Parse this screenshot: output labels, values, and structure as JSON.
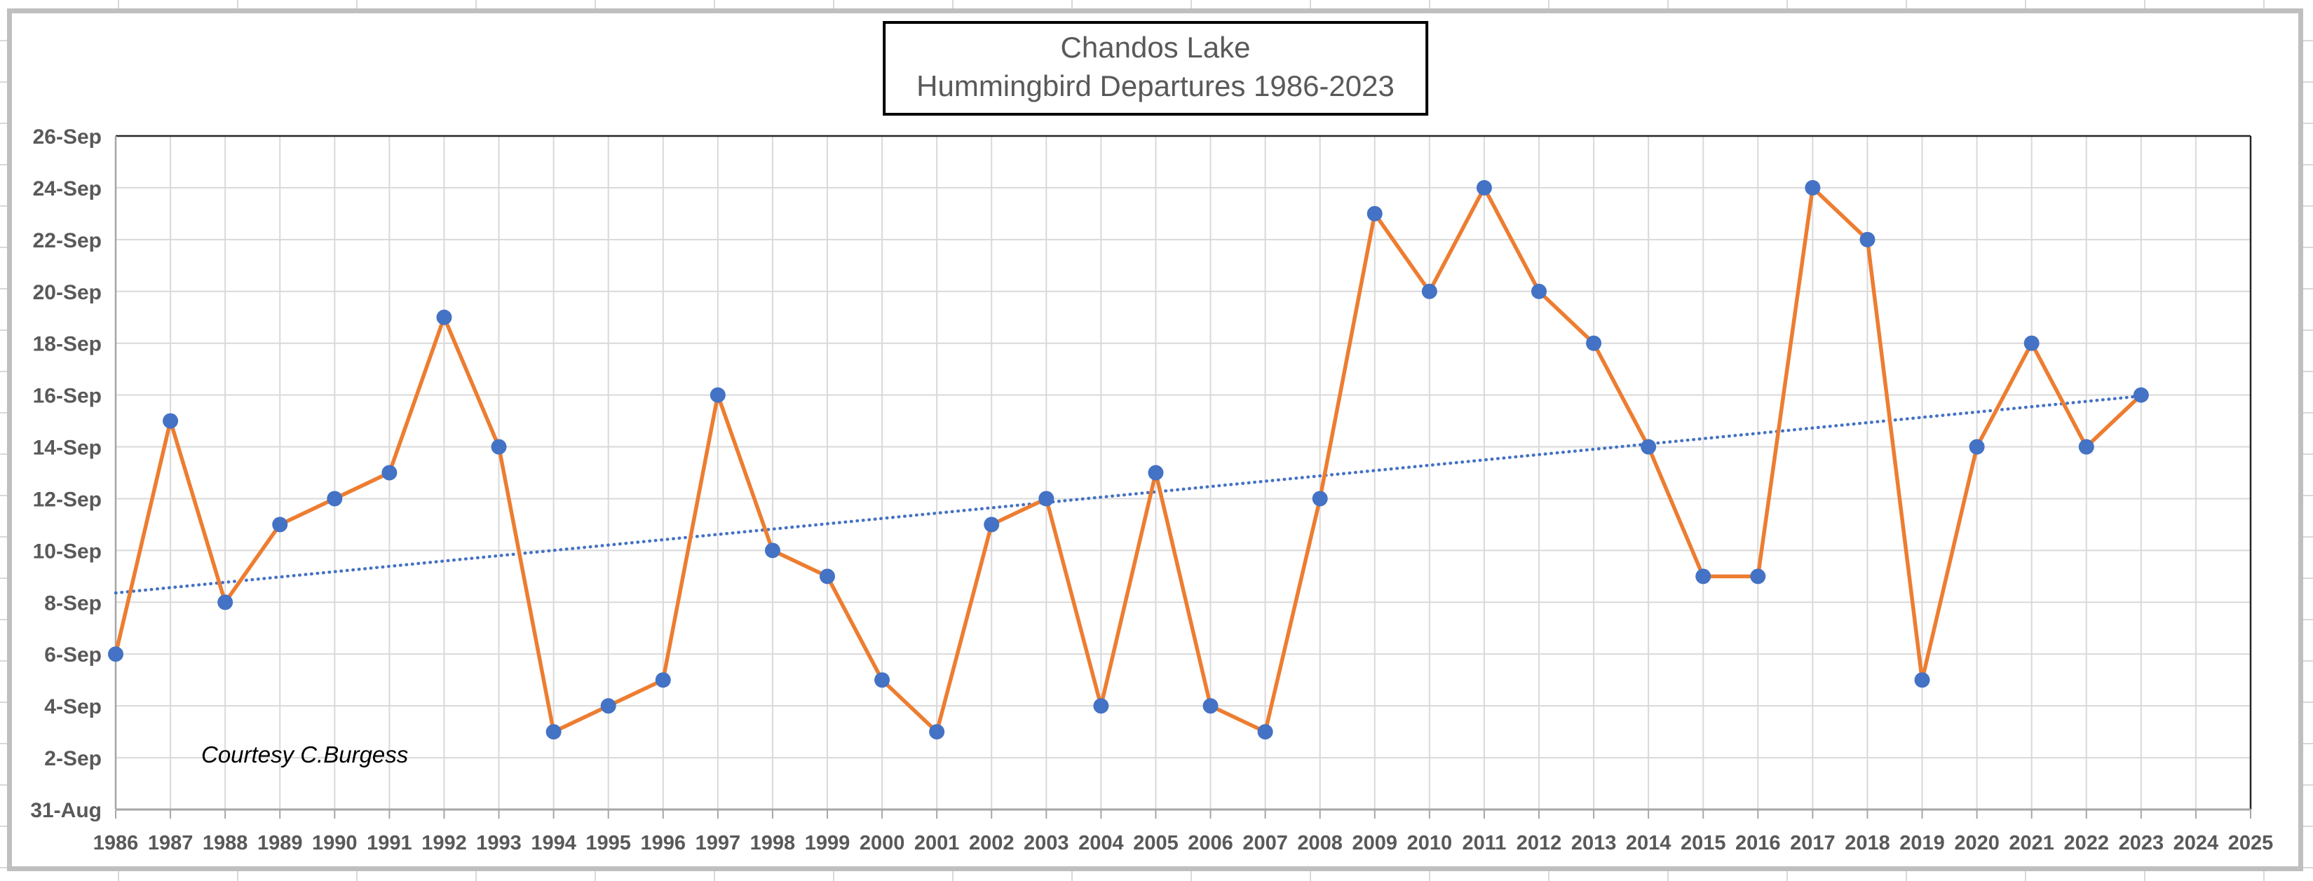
{
  "chart": {
    "title_lines": [
      "Chandos Lake",
      "Hummingbird Departures 1986-2023"
    ],
    "annotation": "Courtesy C.Burgess",
    "colors": {
      "series_line": "#ED7D31",
      "marker": "#4472C4",
      "trendline": "#4472C4",
      "gridline": "#D9D9D9",
      "axis_line": "#A6A6A6",
      "plot_border": "#262626",
      "tick_label": "#595959",
      "title_text": "#595959",
      "frame_border": "#BFBFBF"
    }
  },
  "chart_data": {
    "type": "line",
    "title": "Chandos Lake Hummingbird Departures 1986-2023",
    "legend": "none",
    "grid": true,
    "x_axis": {
      "min": 1986,
      "max": 2025,
      "tick_labels": [
        "1986",
        "1987",
        "1988",
        "1989",
        "1990",
        "1991",
        "1992",
        "1993",
        "1994",
        "1995",
        "1996",
        "1997",
        "1998",
        "1999",
        "2000",
        "2001",
        "2002",
        "2003",
        "2004",
        "2005",
        "2006",
        "2007",
        "2008",
        "2009",
        "2010",
        "2011",
        "2012",
        "2013",
        "2014",
        "2015",
        "2016",
        "2017",
        "2018",
        "2019",
        "2020",
        "2021",
        "2022",
        "2023",
        "2024",
        "2025"
      ]
    },
    "y_axis": {
      "unit": "date (days after 31-Aug)",
      "min": 0,
      "max": 26,
      "step": 2,
      "tick_labels": [
        "31-Aug",
        "2-Sep",
        "4-Sep",
        "6-Sep",
        "8-Sep",
        "10-Sep",
        "12-Sep",
        "14-Sep",
        "16-Sep",
        "18-Sep",
        "20-Sep",
        "22-Sep",
        "24-Sep",
        "26-Sep"
      ]
    },
    "series": [
      {
        "name": "Hummingbird departure date",
        "x": [
          1986,
          1987,
          1988,
          1989,
          1990,
          1991,
          1992,
          1993,
          1994,
          1995,
          1996,
          1997,
          1998,
          1999,
          2000,
          2001,
          2002,
          2003,
          2004,
          2005,
          2006,
          2007,
          2008,
          2009,
          2010,
          2011,
          2012,
          2013,
          2014,
          2015,
          2016,
          2017,
          2018,
          2019,
          2020,
          2021,
          2022,
          2023
        ],
        "values_days_after_aug31": [
          6,
          15,
          8,
          11,
          12,
          13,
          19,
          14,
          3,
          4,
          5,
          16,
          10,
          9,
          5,
          3,
          11,
          12,
          4,
          13,
          4,
          3,
          12,
          23,
          20,
          24,
          20,
          18,
          14,
          9,
          9,
          24,
          22,
          5,
          14,
          18,
          14,
          16
        ],
        "value_dates": [
          "6-Sep",
          "15-Sep",
          "8-Sep",
          "11-Sep",
          "12-Sep",
          "13-Sep",
          "19-Sep",
          "14-Sep",
          "3-Sep",
          "4-Sep",
          "5-Sep",
          "16-Sep",
          "10-Sep",
          "9-Sep",
          "5-Sep",
          "3-Sep",
          "11-Sep",
          "12-Sep",
          "4-Sep",
          "13-Sep",
          "4-Sep",
          "3-Sep",
          "12-Sep",
          "23-Sep",
          "20-Sep",
          "24-Sep",
          "20-Sep",
          "18-Sep",
          "14-Sep",
          "9-Sep",
          "9-Sep",
          "24-Sep",
          "22-Sep",
          "5-Sep",
          "14-Sep",
          "18-Sep",
          "14-Sep",
          "16-Sep"
        ]
      }
    ],
    "trendline": {
      "type": "linear",
      "style": "dotted",
      "start": {
        "x": 1986,
        "value": 8.36
      },
      "end": {
        "x": 2023,
        "value": 15.96
      }
    }
  }
}
